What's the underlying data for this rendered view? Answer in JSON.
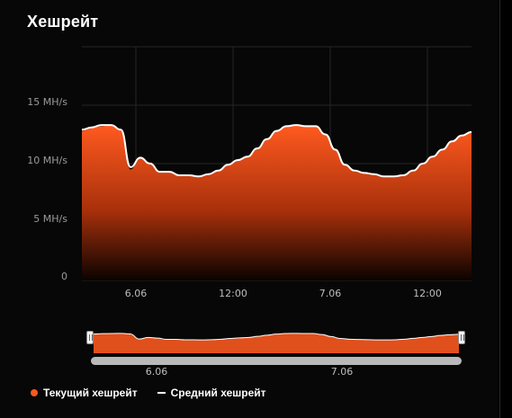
{
  "title": "Хешрейт",
  "legend": {
    "current": "Текущий хешрейт",
    "average": "Средний хешрейт"
  },
  "colors": {
    "area_top": "#ff5a1f",
    "area_bottom": "#000000",
    "average_line": "#ffffff",
    "current_dot": "#ff5722"
  },
  "chart_data": {
    "type": "area",
    "ylabel": "",
    "xlabel": "",
    "ylim": [
      0,
      20
    ],
    "y_unit": "MH/s",
    "y_ticks": [
      "0",
      "5 MH/s",
      "10 MH/s",
      "15 MH/s"
    ],
    "x_ticks": [
      "6.06",
      "12:00",
      "7.06",
      "12:00"
    ],
    "series": [
      {
        "name": "Текущий хешрейт",
        "values": [
          12.8,
          13.1,
          13.2,
          13.3,
          12.9,
          9.5,
          10.6,
          10.1,
          9.3,
          9.3,
          9.0,
          9.0,
          8.9,
          9.1,
          9.4,
          9.9,
          10.3,
          10.6,
          11.3,
          12.1,
          12.8,
          13.2,
          13.3,
          13.2,
          13.2,
          12.5,
          11.2,
          9.9,
          9.4,
          9.2,
          9.1,
          8.9,
          8.9,
          9.0,
          9.4,
          10.0,
          10.6,
          11.2,
          11.9,
          12.4,
          12.7
        ]
      },
      {
        "name": "Средний хешрейт",
        "values": [
          12.9,
          13.1,
          13.3,
          13.3,
          12.9,
          9.7,
          10.5,
          10.0,
          9.3,
          9.3,
          9.0,
          9.0,
          8.9,
          9.1,
          9.4,
          9.9,
          10.3,
          10.6,
          11.3,
          12.1,
          12.8,
          13.2,
          13.3,
          13.2,
          13.2,
          12.5,
          11.2,
          9.9,
          9.4,
          9.2,
          9.1,
          8.9,
          8.9,
          9.0,
          9.4,
          10.0,
          10.6,
          11.2,
          11.9,
          12.4,
          12.7
        ]
      }
    ],
    "navigator_ticks": [
      "6.06",
      "7.06"
    ],
    "grid": true
  }
}
